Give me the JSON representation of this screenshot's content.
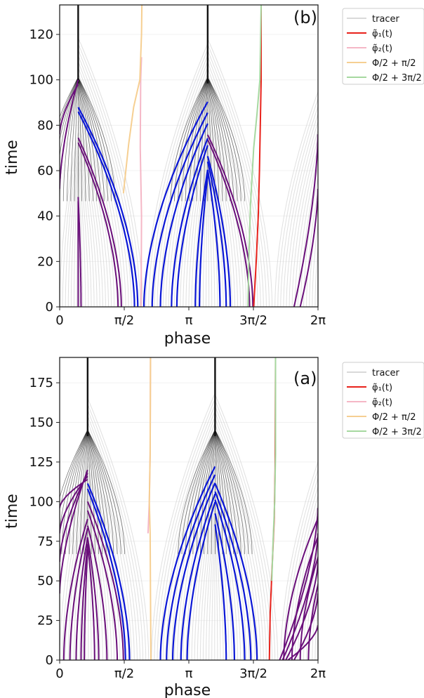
{
  "chart_data": [
    {
      "type": "line",
      "panel_label": "(b)",
      "xlabel": "phase",
      "ylabel": "time",
      "xlim": [
        0,
        6.2832
      ],
      "ylim": [
        0,
        133
      ],
      "x_ticks": [
        0,
        1.5708,
        3.1416,
        4.7124,
        6.2832
      ],
      "x_tick_labels": [
        "0",
        "π/2",
        "π",
        "3π/2",
        "2π"
      ],
      "y_ticks": [
        0,
        20,
        40,
        60,
        80,
        100,
        120
      ],
      "y_tick_labels": [
        "0",
        "20",
        "40",
        "60",
        "80",
        "100",
        "120"
      ],
      "grid": true,
      "legend_placement": "outside-right-top",
      "legend": [
        {
          "label": "tracer",
          "color": "#d9d9d9"
        },
        {
          "label": "φ̃₁(t)",
          "color": "#e8221b"
        },
        {
          "label": "φ̃₂(t)",
          "color": "#f5b7c6"
        },
        {
          "label": "Φ/2 + π/2",
          "color": "#f6cf92"
        },
        {
          "label": "Φ/2 + 3π/2",
          "color": "#a6d8a0"
        }
      ],
      "attractors": [
        0.45,
        3.6
      ],
      "colors": {
        "tracer": "#d6d6d6",
        "dense": "#111111",
        "purple": "#6a0f7a",
        "blue": "#0b17d6"
      },
      "series": [
        {
          "name": "φ̃₁(t)",
          "color": "#e8221b",
          "points": [
            [
              4.72,
              0
            ],
            [
              4.78,
              20
            ],
            [
              4.83,
              40
            ],
            [
              4.86,
              60
            ],
            [
              4.88,
              80
            ],
            [
              4.9,
              100
            ],
            [
              4.9,
              133
            ]
          ]
        },
        {
          "name": "φ̃₂(t)",
          "color": "#f5b7c6",
          "points": [
            [
              1.98,
              0
            ],
            [
              1.99,
              40
            ],
            [
              1.96,
              70
            ],
            [
              1.97,
              100
            ],
            [
              1.99,
              110
            ]
          ]
        },
        {
          "name": "Φ/2 + π/2",
          "color": "#f6cf92",
          "points": [
            [
              1.55,
              50
            ],
            [
              1.68,
              72
            ],
            [
              1.8,
              88
            ],
            [
              1.95,
              100
            ],
            [
              1.99,
              120
            ],
            [
              2.0,
              133
            ]
          ]
        },
        {
          "name": "Φ/2 + 3π/2",
          "color": "#a6d8a0",
          "points": [
            [
              4.58,
              0
            ],
            [
              4.6,
              20
            ],
            [
              4.64,
              45
            ],
            [
              4.72,
              70
            ],
            [
              4.8,
              85
            ],
            [
              4.87,
              100
            ],
            [
              4.9,
              133
            ]
          ]
        }
      ],
      "purple_starts": [
        0.45,
        0.52,
        1.42,
        1.5,
        4.62,
        4.7
      ],
      "purple_edge_curves": [
        [
          0,
          52,
          0.45,
          100
        ],
        [
          0,
          76,
          0.45,
          98
        ],
        [
          6.28,
          52,
          5.85,
          0
        ],
        [
          6.28,
          76,
          5.7,
          0
        ]
      ],
      "blue_starts": [
        1.82,
        1.9,
        2.05,
        2.25,
        2.45,
        2.72,
        2.85,
        3.3,
        3.4,
        3.9,
        4.05,
        4.15
      ]
    },
    {
      "type": "line",
      "panel_label": "(a)",
      "xlabel": "phase",
      "ylabel": "time",
      "xlim": [
        0,
        6.2832
      ],
      "ylim": [
        0,
        191
      ],
      "x_ticks": [
        0,
        1.5708,
        3.1416,
        4.7124,
        6.2832
      ],
      "x_tick_labels": [
        "0",
        "π/2",
        "π",
        "3π/2",
        "2π"
      ],
      "y_ticks": [
        0,
        25,
        50,
        75,
        100,
        125,
        150,
        175
      ],
      "y_tick_labels": [
        "0",
        "25",
        "50",
        "75",
        "100",
        "125",
        "150",
        "175"
      ],
      "grid": true,
      "legend_placement": "outside-right-top",
      "legend": [
        {
          "label": "tracer",
          "color": "#d9d9d9"
        },
        {
          "label": "φ̃₁(t)",
          "color": "#e8221b"
        },
        {
          "label": "φ̃₂(t)",
          "color": "#f5b7c6"
        },
        {
          "label": "Φ/2 + π/2",
          "color": "#f6cf92"
        },
        {
          "label": "Φ/2 + 3π/2",
          "color": "#a6d8a0"
        }
      ],
      "attractors": [
        0.68,
        3.78
      ],
      "colors": {
        "tracer": "#d6d6d6",
        "dense": "#111111",
        "purple": "#6a0f7a",
        "blue": "#0b17d6"
      },
      "series": [
        {
          "name": "φ̃₁(t)",
          "color": "#e8221b",
          "points": [
            [
              5.1,
              0
            ],
            [
              5.12,
              30
            ],
            [
              5.17,
              60
            ],
            [
              5.22,
              90
            ],
            [
              5.24,
              120
            ],
            [
              5.25,
              191
            ]
          ]
        },
        {
          "name": "φ̃₂(t)",
          "color": "#f5b7c6",
          "points": [
            [
              2.15,
              80
            ],
            [
              2.18,
              100
            ],
            [
              2.2,
              130
            ],
            [
              2.21,
              191
            ]
          ]
        },
        {
          "name": "Φ/2 + π/2",
          "color": "#f6cf92",
          "points": [
            [
              2.22,
              0
            ],
            [
              2.21,
              40
            ],
            [
              2.2,
              80
            ],
            [
              2.18,
              100
            ],
            [
              2.2,
              130
            ],
            [
              2.21,
              191
            ]
          ]
        },
        {
          "name": "Φ/2 + 3π/2",
          "color": "#a6d8a0",
          "points": [
            [
              5.16,
              50
            ],
            [
              5.19,
              75
            ],
            [
              5.23,
              100
            ],
            [
              5.25,
              130
            ],
            [
              5.25,
              191
            ]
          ]
        }
      ],
      "purple_starts": [
        0.1,
        0.25,
        0.4,
        0.52,
        0.6,
        0.85,
        0.95,
        1.15,
        1.4,
        1.55,
        5.45,
        5.65,
        5.85,
        6.05
      ],
      "purple_edge_curves": [
        [
          0,
          42,
          0.68,
          120
        ],
        [
          0,
          62,
          0.68,
          118
        ],
        [
          0,
          80,
          0.68,
          116
        ],
        [
          0,
          96,
          0.68,
          114
        ],
        [
          6.28,
          22,
          5.55,
          0
        ],
        [
          6.28,
          42,
          5.7,
          0
        ],
        [
          6.28,
          62,
          5.5,
          0
        ],
        [
          6.28,
          80,
          5.42,
          0
        ],
        [
          6.28,
          96,
          5.35,
          0
        ]
      ],
      "blue_starts": [
        1.6,
        1.7,
        2.45,
        2.6,
        2.75,
        2.95,
        3.1,
        4.05,
        4.25,
        4.5,
        4.65,
        4.8
      ]
    }
  ]
}
